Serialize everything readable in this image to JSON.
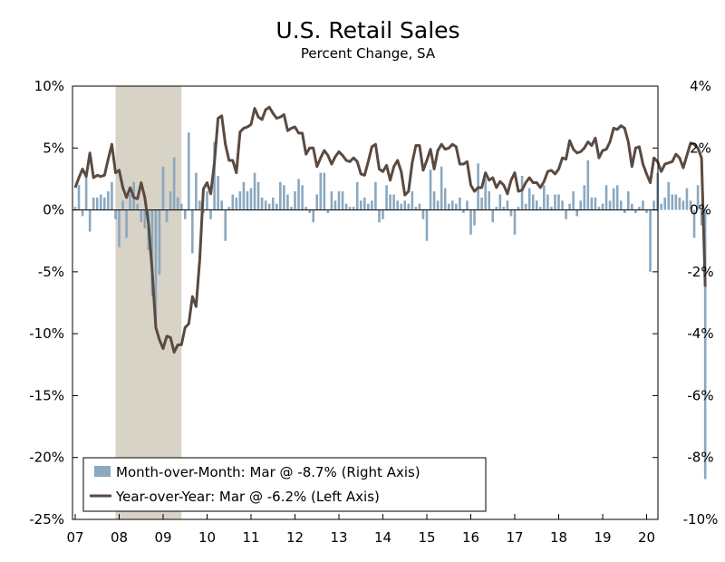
{
  "chart_data": {
    "type": "bar+line",
    "title": "U.S. Retail Sales",
    "subtitle": "Percent Change, SA",
    "x_tick_labels": [
      "07",
      "08",
      "09",
      "10",
      "11",
      "12",
      "13",
      "14",
      "15",
      "16",
      "17",
      "18",
      "19",
      "20"
    ],
    "x_tick_years": [
      2007,
      2008,
      2009,
      2010,
      2011,
      2012,
      2013,
      2014,
      2015,
      2016,
      2017,
      2018,
      2019,
      2020
    ],
    "left_axis": {
      "range": [
        -25,
        10
      ],
      "ticks": [
        "10%",
        "5%",
        "0%",
        "-5%",
        "-10%",
        "-15%",
        "-20%",
        "-25%"
      ]
    },
    "right_axis": {
      "range": [
        -10,
        4
      ],
      "ticks": [
        "4%",
        "2%",
        "0%",
        "-2%",
        "-4%",
        "-6%",
        "-8%",
        "-10%"
      ]
    },
    "recession": {
      "start": "2007-12",
      "end": "2009-06"
    },
    "x_start": "2007-01",
    "series": [
      {
        "name": "Month-over-Month: Mar @ -8.7% (Right Axis)",
        "type": "bar",
        "axis": "right",
        "color": "#8aa8c0",
        "values": [
          0.1,
          0.8,
          -0.2,
          1.1,
          -0.7,
          0.4,
          0.4,
          0.5,
          0.4,
          0.6,
          0.9,
          -0.3,
          -1.2,
          0.3,
          -0.9,
          0.5,
          0.9,
          0.2,
          -0.4,
          -0.6,
          -1.3,
          -2.8,
          -3.8,
          -2.1,
          1.4,
          -0.4,
          0.6,
          1.7,
          0.4,
          0.2,
          -0.3,
          2.5,
          -1.4,
          1.2,
          0.3,
          -0.1,
          0.6,
          -0.3,
          2.2,
          1.1,
          0.3,
          -1.0,
          0.1,
          0.5,
          0.4,
          0.6,
          0.9,
          0.6,
          0.7,
          1.2,
          0.9,
          0.4,
          0.3,
          0.2,
          0.4,
          0.2,
          0.9,
          0.8,
          0.5,
          0.1,
          0.6,
          1.0,
          0.8,
          0.1,
          -0.1,
          -0.4,
          0.5,
          1.2,
          1.2,
          -0.1,
          0.6,
          0.3,
          0.6,
          0.6,
          0.2,
          0.1,
          0.1,
          0.9,
          0.3,
          0.4,
          0.2,
          0.3,
          0.9,
          -0.4,
          -0.3,
          0.8,
          0.5,
          0.5,
          0.3,
          0.2,
          0.3,
          0.2,
          0.6,
          0.1,
          0.2,
          -0.3,
          -1.0,
          1.3,
          0.6,
          0.3,
          1.4,
          0.7,
          0.2,
          0.3,
          0.2,
          0.4,
          -0.1,
          0.3,
          -0.8,
          -0.5,
          1.5,
          0.4,
          1.0,
          0.6,
          -0.4,
          0.1,
          0.5,
          0.1,
          0.3,
          -0.2,
          -0.8,
          0.1,
          1.1,
          0.2,
          0.7,
          0.5,
          0.3,
          0.1,
          0.8,
          0.5,
          0.1,
          0.5,
          0.5,
          0.3,
          -0.3,
          0.2,
          0.6,
          -0.2,
          0.3,
          0.8,
          1.6,
          0.4,
          0.4,
          0.1,
          0.2,
          0.8,
          0.3,
          0.7,
          0.8,
          0.3,
          -0.1,
          0.6,
          0.2,
          -0.1,
          0.1,
          0.3,
          -0.1,
          -2.0,
          0.3,
          1.2,
          0.2,
          0.4,
          0.9,
          0.5,
          0.5,
          0.4,
          0.3,
          0.7,
          0.3,
          -0.9,
          0.8,
          -0.5,
          -8.7
        ]
      },
      {
        "name": "Year-over-Year: Mar @ -6.2% (Left Axis)",
        "type": "line",
        "axis": "left",
        "color": "#5a4a40",
        "values": [
          1.8,
          2.6,
          3.3,
          2.7,
          4.6,
          2.6,
          2.8,
          2.7,
          2.8,
          4.1,
          5.3,
          3.0,
          3.2,
          1.8,
          1.0,
          1.8,
          1.0,
          0.9,
          2.2,
          1.0,
          -1.1,
          -4.9,
          -9.5,
          -10.5,
          -11.2,
          -10.2,
          -10.3,
          -11.5,
          -10.9,
          -10.9,
          -9.5,
          -9.2,
          -7.0,
          -7.8,
          -4.0,
          1.7,
          2.2,
          1.3,
          3.8,
          7.4,
          7.6,
          5.3,
          4.0,
          4.0,
          3.0,
          6.3,
          6.6,
          6.7,
          6.9,
          8.2,
          7.5,
          7.3,
          8.1,
          8.3,
          7.8,
          7.4,
          7.5,
          7.7,
          6.4,
          6.6,
          6.7,
          6.2,
          6.2,
          4.5,
          5.0,
          5.0,
          3.5,
          4.2,
          4.8,
          4.4,
          3.7,
          4.3,
          4.7,
          4.4,
          4.0,
          3.9,
          4.2,
          3.9,
          2.9,
          2.8,
          3.9,
          5.1,
          5.3,
          3.3,
          3.1,
          3.6,
          2.4,
          3.5,
          4.0,
          3.1,
          1.2,
          1.5,
          3.8,
          5.2,
          5.2,
          3.2,
          4.0,
          4.9,
          3.3,
          4.8,
          5.3,
          4.9,
          5.0,
          5.3,
          5.1,
          3.7,
          3.7,
          3.9,
          2.0,
          1.5,
          1.8,
          1.8,
          3.0,
          2.4,
          2.6,
          1.8,
          2.3,
          2.0,
          1.3,
          2.4,
          3.0,
          1.5,
          1.6,
          2.2,
          2.6,
          2.2,
          2.2,
          1.8,
          2.3,
          3.1,
          3.2,
          2.9,
          3.3,
          4.2,
          4.1,
          5.6,
          4.9,
          4.6,
          4.7,
          5.0,
          5.5,
          5.2,
          5.8,
          4.2,
          4.8,
          4.9,
          5.5,
          6.6,
          6.5,
          6.8,
          6.6,
          5.5,
          3.5,
          5.0,
          5.1,
          3.7,
          2.9,
          2.2,
          4.2,
          3.9,
          3.1,
          3.7,
          3.8,
          3.9,
          4.5,
          4.2,
          3.4,
          4.4,
          5.4,
          5.3,
          5.0,
          4.2,
          -6.2
        ]
      }
    ],
    "legend": {
      "placement": "bottom-left"
    },
    "grid": false
  }
}
